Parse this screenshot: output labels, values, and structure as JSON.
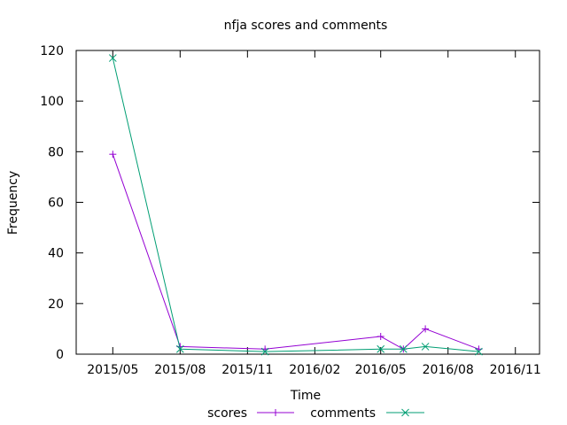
{
  "chart_data": {
    "type": "line",
    "title": "nfja scores and comments",
    "xlabel": "Time",
    "ylabel": "Frequency",
    "x_tick_labels": [
      "2015/05",
      "2015/08",
      "2015/11",
      "2016/02",
      "2016/05",
      "2016/08",
      "2016/11"
    ],
    "x_ticks": [
      "2015-05-01",
      "2015-08-01",
      "2015-11-01",
      "2016-02-01",
      "2016-05-01",
      "2016-08-01",
      "2016-11-01"
    ],
    "xlim": [
      "2015-03-12",
      "2016-12-04"
    ],
    "ylim": [
      0,
      120
    ],
    "y_ticks": [
      0,
      20,
      40,
      60,
      80,
      100,
      120
    ],
    "grid": false,
    "legend_position": "bottom",
    "x": [
      "2015-05-01",
      "2015-08-01",
      "2015-11-25",
      "2016-05-01",
      "2016-06-01",
      "2016-07-01",
      "2016-09-12"
    ],
    "series": [
      {
        "name": "scores",
        "values": [
          79,
          3,
          2,
          7,
          2,
          10,
          2
        ],
        "color": "#9400d3",
        "marker": "plus"
      },
      {
        "name": "comments",
        "values": [
          117,
          2,
          1,
          2,
          2,
          3,
          1
        ],
        "color": "#009e73",
        "marker": "cross"
      }
    ]
  }
}
